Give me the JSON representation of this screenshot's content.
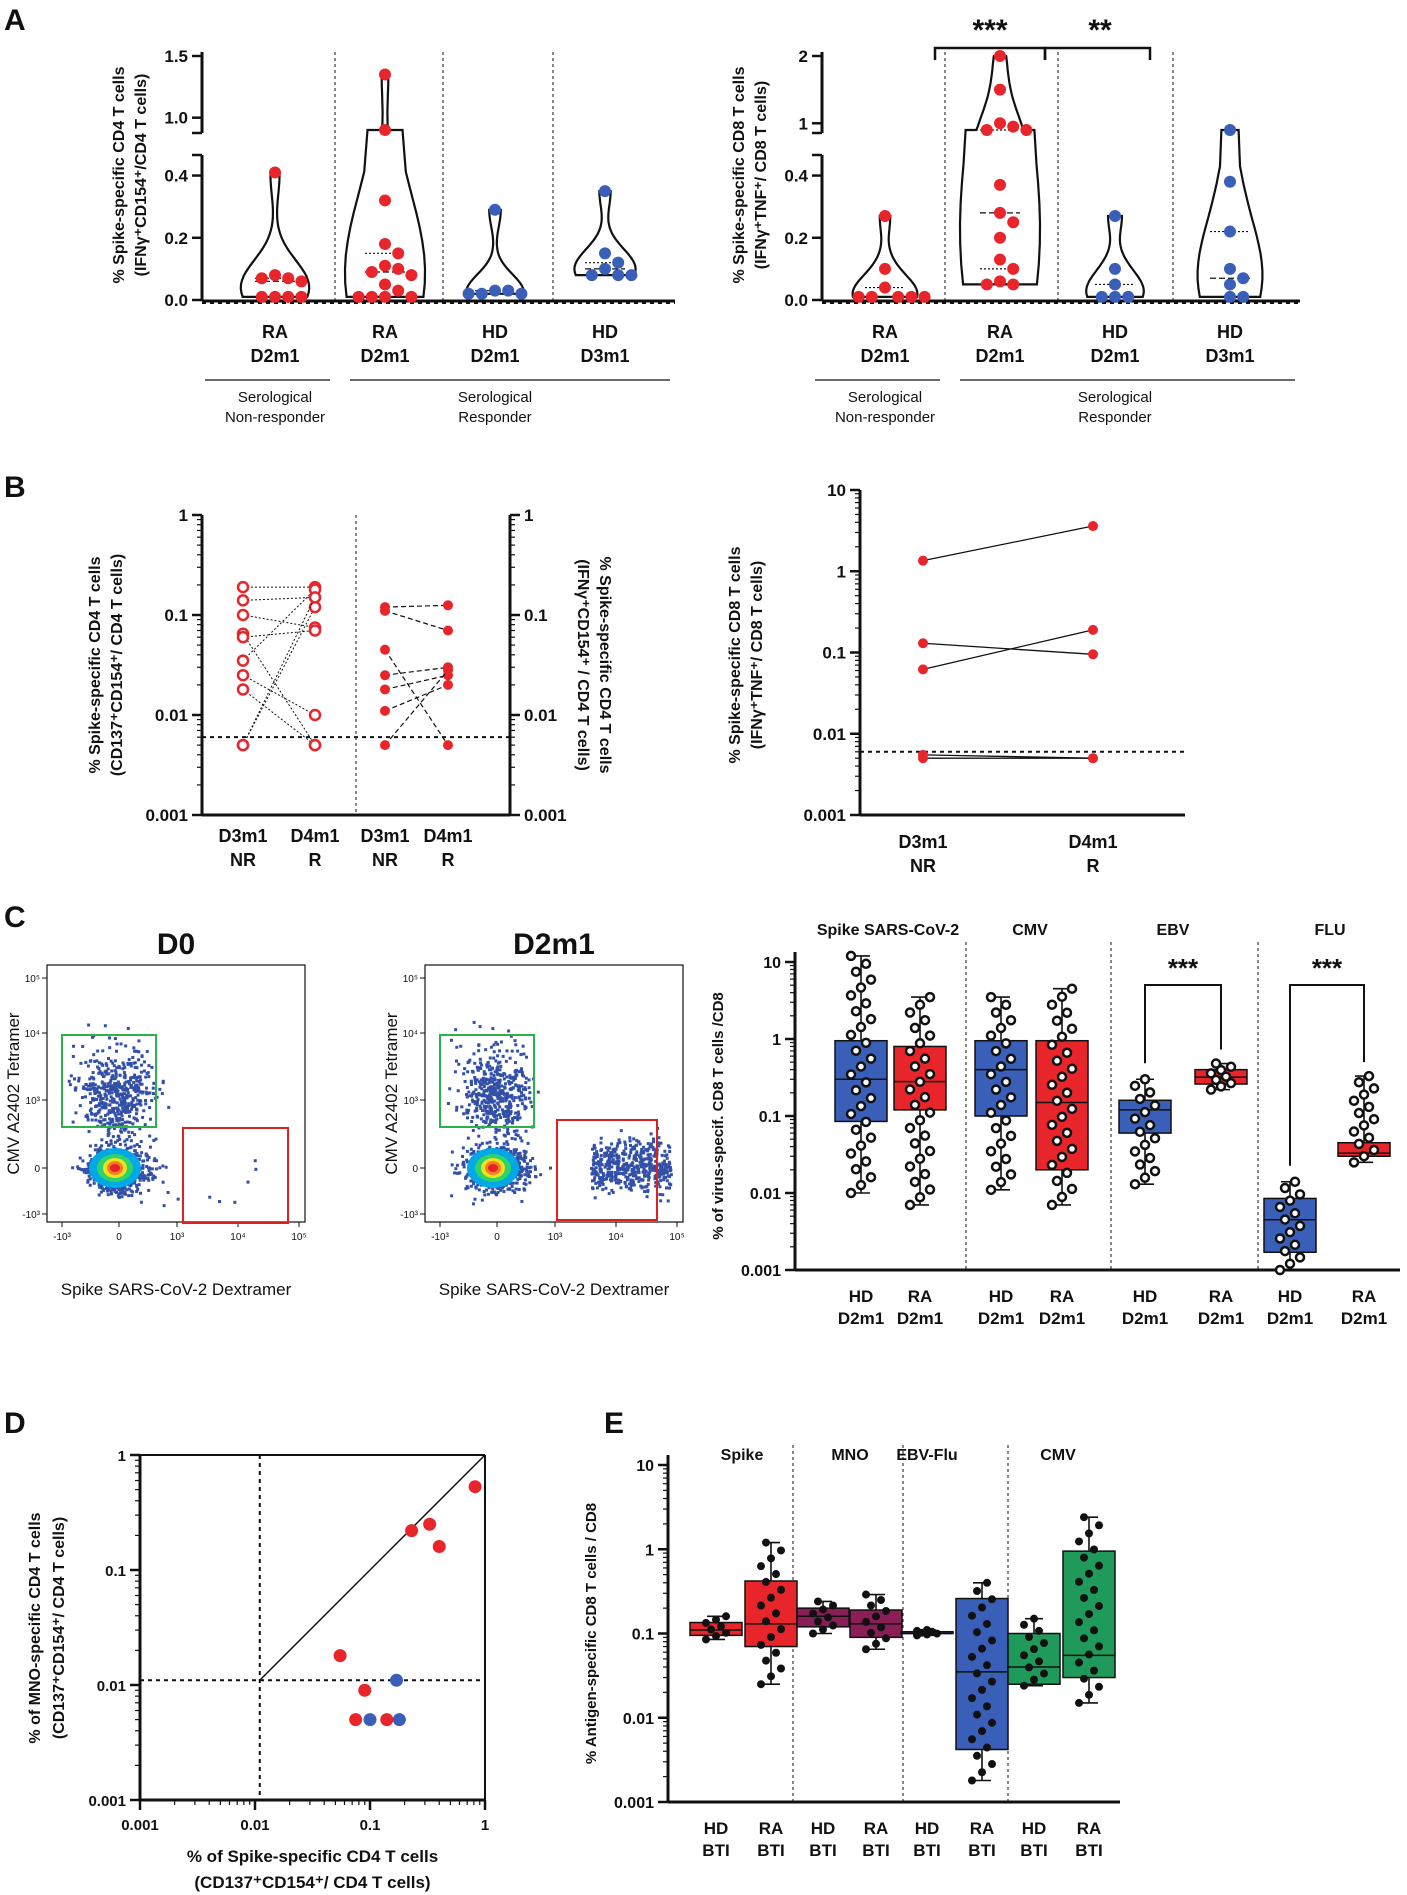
{
  "panel_letters": [
    "A",
    "B",
    "C",
    "D",
    "E"
  ],
  "serology": {
    "non_responder": [
      "Serological",
      "Non-responder"
    ],
    "responder": [
      "Serological",
      "Responder"
    ]
  },
  "chart_data": [
    {
      "id": "A1",
      "type": "violin",
      "ylabel": [
        "% Spike-specific CD4 T cells",
        "(IFNγ⁺CD154⁺/CD4 T cells)"
      ],
      "ylim": [
        0,
        1.5
      ],
      "axis_break": [
        0.45,
        0.5
      ],
      "yticks_low": [
        "0.0",
        "0.2",
        "0.4"
      ],
      "yticks_high": [
        "1.0",
        "1.5"
      ],
      "categories": [
        [
          "RA",
          "D2m1"
        ],
        [
          "RA",
          "D2m1"
        ],
        [
          "HD",
          "D2m1"
        ],
        [
          "HD",
          "D3m1"
        ]
      ],
      "series": [
        {
          "name": "RA D2m1 NR",
          "color": "#e8252a",
          "values": [
            0.41,
            0.08,
            0.07,
            0.07,
            0.06,
            0.01,
            0.01,
            0.01,
            0.01
          ]
        },
        {
          "name": "RA D2m1 R",
          "color": "#e8252a",
          "values": [
            1.35,
            0.63,
            0.32,
            0.18,
            0.15,
            0.11,
            0.1,
            0.09,
            0.08,
            0.05,
            0.03,
            0.01,
            0.01,
            0.01,
            0.01
          ]
        },
        {
          "name": "HD D2m1",
          "color": "#3a5fb8",
          "values": [
            0.29,
            0.03,
            0.03,
            0.02,
            0.02,
            0.02
          ]
        },
        {
          "name": "HD D3m1",
          "color": "#3a5fb8",
          "values": [
            0.35,
            0.15,
            0.12,
            0.1,
            0.08,
            0.08,
            0.08
          ]
        }
      ]
    },
    {
      "id": "A2",
      "type": "violin",
      "ylabel": [
        "% Spike-specific CD8 T cells",
        "(IFNγ⁺TNF⁺/ CD8 T cells)"
      ],
      "ylim": [
        0,
        2
      ],
      "axis_break": [
        0.45,
        0.5
      ],
      "yticks_low": [
        "0.0",
        "0.2",
        "0.4"
      ],
      "yticks_high": [
        "1",
        "2"
      ],
      "categories": [
        [
          "RA",
          "D2m1"
        ],
        [
          "RA",
          "D2m1"
        ],
        [
          "HD",
          "D2m1"
        ],
        [
          "HD",
          "D3m1"
        ]
      ],
      "significance": [
        "***",
        "**"
      ],
      "series": [
        {
          "name": "RA D2m1 NR",
          "color": "#e8252a",
          "values": [
            0.27,
            0.1,
            0.04,
            0.01,
            0.01,
            0.01,
            0.01,
            0.01
          ]
        },
        {
          "name": "RA D2m1 R",
          "color": "#e8252a",
          "values": [
            2.0,
            1.5,
            1.0,
            0.95,
            0.9,
            0.75,
            0.37,
            0.28,
            0.25,
            0.2,
            0.13,
            0.1,
            0.06,
            0.05,
            0.05
          ]
        },
        {
          "name": "HD D2m1",
          "color": "#3a5fb8",
          "values": [
            0.27,
            0.1,
            0.05,
            0.01,
            0.01,
            0.01
          ]
        },
        {
          "name": "HD D3m1",
          "color": "#3a5fb8",
          "values": [
            0.85,
            0.38,
            0.22,
            0.1,
            0.07,
            0.05,
            0.01,
            0.01
          ]
        }
      ]
    },
    {
      "id": "B1",
      "type": "paired-line",
      "scale": "log",
      "ylabel_left": [
        "% Spike-specific CD4 T cells",
        "(CD137⁺CD154⁺/ CD4 T cells)"
      ],
      "ylabel_right": [
        "% Spike-specific CD4 T cells",
        "(IFNγ⁺CD154⁺ / CD4 T cells)"
      ],
      "ylim": [
        0.001,
        1
      ],
      "yticks": [
        "0.001",
        "0.01",
        "0.1",
        "1"
      ],
      "threshold": 0.006,
      "categories": [
        [
          "D3m1",
          "NR"
        ],
        [
          "D4m1",
          "R"
        ],
        [
          "D3m1",
          "NR"
        ],
        [
          "D4m1",
          "R"
        ]
      ],
      "pairs_left": [
        [
          0.19,
          0.19
        ],
        [
          0.14,
          0.15
        ],
        [
          0.1,
          0.075
        ],
        [
          0.065,
          0.005
        ],
        [
          0.06,
          0.07
        ],
        [
          0.035,
          0.18
        ],
        [
          0.025,
          0.01
        ],
        [
          0.018,
          0.005
        ],
        [
          0.005,
          0.12
        ],
        [
          0.005,
          0.15
        ]
      ],
      "pairs_right": [
        [
          0.12,
          0.125
        ],
        [
          0.11,
          0.07
        ],
        [
          0.045,
          0.005
        ],
        [
          0.025,
          0.03
        ],
        [
          0.018,
          0.025
        ],
        [
          0.011,
          0.02
        ],
        [
          0.005,
          0.028
        ]
      ]
    },
    {
      "id": "B2",
      "type": "paired-line",
      "scale": "log",
      "ylabel": [
        "% Spike-specific CD8 T cells",
        "(IFNγ⁺TNF⁺/ CD8 T cells)"
      ],
      "ylim": [
        0.001,
        10
      ],
      "yticks": [
        "0.001",
        "0.01",
        "0.1",
        "1",
        "10"
      ],
      "threshold": 0.006,
      "categories": [
        [
          "D3m1",
          "NR"
        ],
        [
          "D4m1",
          "R"
        ]
      ],
      "pairs": [
        [
          1.35,
          3.6
        ],
        [
          0.13,
          0.095
        ],
        [
          0.062,
          0.19
        ],
        [
          0.0055,
          0.005
        ],
        [
          0.005,
          0.005
        ]
      ]
    },
    {
      "id": "C1",
      "type": "flow-plot",
      "title": "D0",
      "xlabel": "Spike SARS-CoV-2 Dextramer",
      "ylabel": "CMV A2402 Tetramer",
      "xticks": [
        "-10³",
        "0",
        "10³",
        "10⁴",
        "10⁵"
      ],
      "yticks": [
        "-10³",
        "0",
        "10³",
        "10⁴",
        "10⁵"
      ]
    },
    {
      "id": "C2",
      "type": "flow-plot",
      "title": "D2m1",
      "xlabel": "Spike SARS-CoV-2 Dextramer",
      "ylabel": "CMV A2402 Tetramer",
      "xticks": [
        "-10³",
        "0",
        "10³",
        "10⁴",
        "10⁵"
      ],
      "yticks": [
        "-10³",
        "0",
        "10³",
        "10⁴",
        "10⁵"
      ]
    },
    {
      "id": "C3",
      "type": "box",
      "scale": "log",
      "ylabel": "% of virus-specif. CD8 T cells /CD8",
      "ylim": [
        0.001,
        10
      ],
      "yticks": [
        "0.001",
        "0.01",
        "0.1",
        "1",
        "10"
      ],
      "groups": [
        "Spike SARS-CoV-2",
        "CMV",
        "EBV",
        "FLU"
      ],
      "categories": [
        [
          "HD",
          "D2m1"
        ],
        [
          "RA",
          "D2m1"
        ],
        [
          "HD",
          "D2m1"
        ],
        [
          "RA",
          "D2m1"
        ],
        [
          "HD",
          "D2m1"
        ],
        [
          "RA",
          "D2m1"
        ],
        [
          "HD",
          "D2m1"
        ],
        [
          "RA",
          "D2m1"
        ]
      ],
      "significance": [
        "***",
        "***"
      ],
      "series": [
        {
          "name": "HD D2m1 Spike",
          "color": "#3a5fb8",
          "box": [
            0.01,
            0.085,
            0.3,
            0.95,
            12
          ]
        },
        {
          "name": "RA D2m1 Spike",
          "color": "#e8252a",
          "box": [
            0.007,
            0.12,
            0.28,
            0.8,
            3.5
          ]
        },
        {
          "name": "HD D2m1 CMV",
          "color": "#3a5fb8",
          "box": [
            0.011,
            0.1,
            0.4,
            0.95,
            3.5
          ]
        },
        {
          "name": "RA D2m1 CMV",
          "color": "#e8252a",
          "box": [
            0.007,
            0.02,
            0.15,
            0.95,
            4.5
          ]
        },
        {
          "name": "HD D2m1 EBV",
          "color": "#3a5fb8",
          "box": [
            0.013,
            0.06,
            0.12,
            0.16,
            0.3
          ]
        },
        {
          "name": "RA D2m1 EBV",
          "color": "#e8252a",
          "box": [
            0.22,
            0.26,
            0.32,
            0.4,
            0.48
          ]
        },
        {
          "name": "HD D2m1 FLU",
          "color": "#3a5fb8",
          "box": [
            0.001,
            0.0017,
            0.0045,
            0.0085,
            0.014
          ]
        },
        {
          "name": "RA D2m1 FLU",
          "color": "#e8252a",
          "box": [
            0.025,
            0.03,
            0.033,
            0.045,
            0.33
          ]
        }
      ]
    },
    {
      "id": "D",
      "type": "scatter",
      "scale": "log-log",
      "xlabel": [
        "% of Spike-specific CD4 T cells",
        "(CD137⁺CD154⁺/ CD4 T cells)"
      ],
      "ylabel": [
        "% of MNO-specific CD4 T cells",
        "(CD137⁺CD154⁺/ CD4 T cells)"
      ],
      "xlim": [
        0.001,
        1
      ],
      "ylim": [
        0.001,
        1
      ],
      "xticks": [
        "0.001",
        "0.01",
        "0.1",
        "1"
      ],
      "yticks": [
        "0.001",
        "0.01",
        "0.1",
        "1"
      ],
      "threshold": 0.011,
      "series": [
        {
          "name": "RA",
          "color": "#e8252a",
          "points": [
            [
              0.82,
              0.53
            ],
            [
              0.33,
              0.25
            ],
            [
              0.4,
              0.16
            ],
            [
              0.23,
              0.22
            ],
            [
              0.055,
              0.018
            ],
            [
              0.09,
              0.009
            ],
            [
              0.075,
              0.005
            ],
            [
              0.14,
              0.005
            ]
          ]
        },
        {
          "name": "HD",
          "color": "#3a5fb8",
          "points": [
            [
              0.17,
              0.011
            ],
            [
              0.1,
              0.005
            ],
            [
              0.18,
              0.005
            ]
          ]
        }
      ]
    },
    {
      "id": "E",
      "type": "box",
      "scale": "log",
      "ylabel": "% Antigen-specific CD8 T cells / CD8",
      "ylim": [
        0.001,
        10
      ],
      "yticks": [
        "0.001",
        "0.01",
        "0.1",
        "1",
        "10"
      ],
      "groups": [
        "Spike",
        "MNO",
        "EBV-Flu",
        "CMV"
      ],
      "categories": [
        [
          "HD",
          "BTI"
        ],
        [
          "RA",
          "BTI"
        ],
        [
          "HD",
          "BTI"
        ],
        [
          "RA",
          "BTI"
        ],
        [
          "HD",
          "BTI"
        ],
        [
          "RA",
          "BTI"
        ],
        [
          "HD",
          "BTI"
        ],
        [
          "RA",
          "BTI"
        ]
      ],
      "series": [
        {
          "name": "HD BTI Spike",
          "color": "#e8252a",
          "box": [
            0.085,
            0.095,
            0.11,
            0.135,
            0.16
          ]
        },
        {
          "name": "RA BTI Spike",
          "color": "#e8252a",
          "box": [
            0.025,
            0.07,
            0.13,
            0.42,
            1.2
          ]
        },
        {
          "name": "HD BTI MNO",
          "color": "#8b1e57",
          "box": [
            0.1,
            0.12,
            0.16,
            0.2,
            0.24
          ]
        },
        {
          "name": "RA BTI MNO",
          "color": "#8b1e57",
          "box": [
            0.065,
            0.09,
            0.13,
            0.19,
            0.29
          ]
        },
        {
          "name": "HD BTI EBV-Flu",
          "color": "#3a5fb8",
          "box": [
            0.095,
            0.1,
            0.1,
            0.105,
            0.11
          ]
        },
        {
          "name": "RA BTI EBV-Flu",
          "color": "#3a5fb8",
          "box": [
            0.0018,
            0.0042,
            0.035,
            0.26,
            0.4
          ]
        },
        {
          "name": "HD BTI CMV",
          "color": "#1f9a5a",
          "box": [
            0.024,
            0.025,
            0.04,
            0.1,
            0.15
          ]
        },
        {
          "name": "RA BTI CMV",
          "color": "#1f9a5a",
          "box": [
            0.015,
            0.03,
            0.055,
            0.95,
            2.4
          ]
        }
      ]
    }
  ]
}
